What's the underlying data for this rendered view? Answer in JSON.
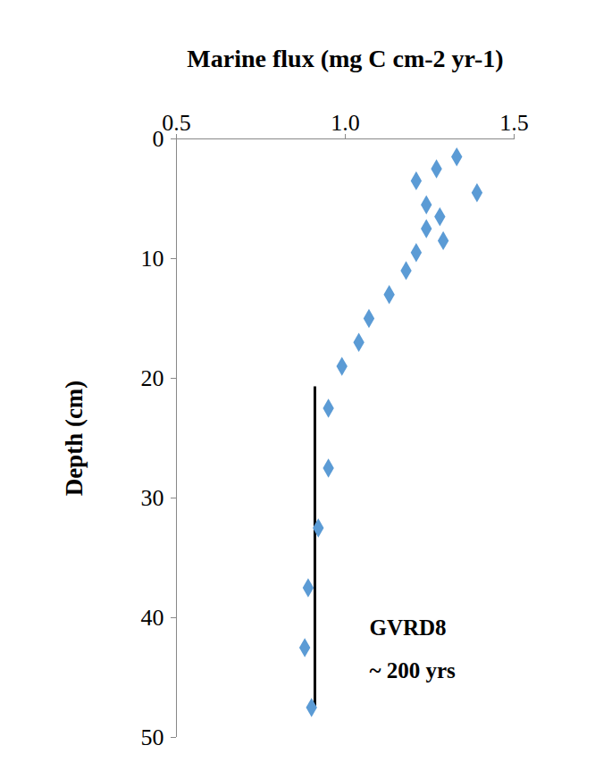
{
  "chart_data": {
    "type": "scatter",
    "x_label": "Marine flux (mg C cm-2 yr-1)",
    "y_label": "Depth (cm)",
    "x": [
      1.33,
      1.27,
      1.21,
      1.39,
      1.24,
      1.28,
      1.24,
      1.29,
      1.21,
      1.18,
      1.13,
      1.07,
      1.04,
      0.99,
      0.95,
      0.95,
      0.92,
      0.89,
      0.88,
      0.9
    ],
    "values": [
      1.5,
      2.5,
      3.5,
      4.5,
      5.5,
      6.5,
      7.5,
      8.5,
      9.5,
      11,
      13,
      15,
      17,
      19,
      22.5,
      27.5,
      32.5,
      37.5,
      42.5,
      47.5
    ],
    "color": "#5b9bd5",
    "marker": "diamond",
    "xlim": [
      0.5,
      1.5
    ],
    "xticks": [
      0.5,
      {
        "value": 1,
        "label": "1.0"
      },
      1.5
    ],
    "ylim": [
      0,
      50
    ],
    "yticks": [
      0,
      10,
      20,
      30,
      40,
      50
    ],
    "reference_line": {
      "x": 0.91,
      "y": [
        20.7,
        47.5
      ],
      "color": "#000000"
    },
    "annotation": [
      "GVRD8",
      "~ 200 yrs"
    ],
    "grid": false
  }
}
